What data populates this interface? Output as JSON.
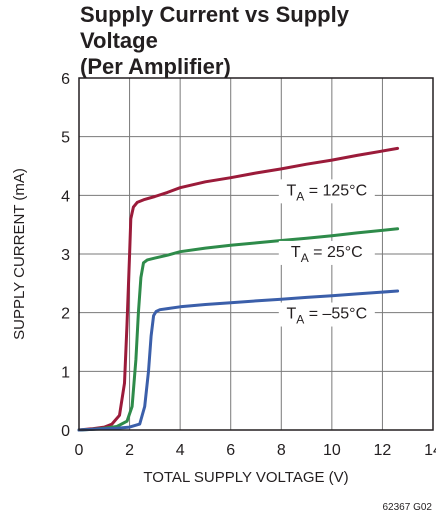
{
  "figure_id": "62367 G02",
  "chart_data": {
    "type": "line",
    "title": "Supply Current vs Supply Voltage",
    "subtitle": "(Per Amplifier)",
    "xlabel": "TOTAL SUPPLY VOLTAGE (V)",
    "ylabel": "SUPPLY CURRENT (mA)",
    "xlim": [
      0,
      14
    ],
    "ylim": [
      0,
      6
    ],
    "xticks": [
      0,
      2,
      4,
      6,
      8,
      10,
      12,
      14
    ],
    "yticks": [
      0,
      1,
      2,
      3,
      4,
      5,
      6
    ],
    "grid": true,
    "series": [
      {
        "name": "TA = 125°C",
        "label_main": "T",
        "label_sub": "A",
        "label_rest": " = 125°C",
        "color": "#9b1b3a",
        "label_x": 9.8,
        "label_y": 4.0,
        "x": [
          0,
          0.5,
          1.0,
          1.3,
          1.6,
          1.8,
          1.9,
          2.0,
          2.05,
          2.15,
          2.3,
          2.6,
          3.0,
          3.5,
          4.0,
          5.0,
          6.0,
          7.0,
          8.0,
          9.0,
          10.0,
          11.0,
          12.6
        ],
        "values": [
          0,
          0.02,
          0.05,
          0.1,
          0.25,
          0.8,
          1.8,
          3.0,
          3.6,
          3.8,
          3.88,
          3.93,
          3.98,
          4.05,
          4.13,
          4.23,
          4.3,
          4.38,
          4.45,
          4.53,
          4.6,
          4.68,
          4.8
        ]
      },
      {
        "name": "TA = 25°C",
        "label_main": "T",
        "label_sub": "A",
        "label_rest": " = 25°C",
        "color": "#2e8b4a",
        "label_x": 9.8,
        "label_y": 2.95,
        "x": [
          0,
          0.5,
          1.0,
          1.5,
          1.9,
          2.1,
          2.25,
          2.35,
          2.45,
          2.55,
          2.7,
          3.0,
          3.5,
          4.0,
          5.0,
          6.0,
          7.0,
          8.0,
          9.0,
          10.0,
          11.0,
          12.6
        ],
        "values": [
          0,
          0.01,
          0.03,
          0.06,
          0.15,
          0.4,
          1.2,
          2.0,
          2.6,
          2.85,
          2.9,
          2.93,
          2.98,
          3.04,
          3.1,
          3.15,
          3.19,
          3.23,
          3.27,
          3.31,
          3.36,
          3.43
        ]
      },
      {
        "name": "TA = –55°C",
        "label_main": "T",
        "label_sub": "A",
        "label_rest": " = –55°C",
        "color": "#3b5faa",
        "label_x": 9.8,
        "label_y": 1.9,
        "x": [
          0,
          0.5,
          1.0,
          1.5,
          2.0,
          2.4,
          2.6,
          2.75,
          2.85,
          2.95,
          3.05,
          3.2,
          3.5,
          4.0,
          5.0,
          6.0,
          7.0,
          8.0,
          9.0,
          10.0,
          11.0,
          12.6
        ],
        "values": [
          0,
          0.01,
          0.02,
          0.03,
          0.05,
          0.1,
          0.4,
          1.0,
          1.6,
          1.95,
          2.02,
          2.05,
          2.07,
          2.1,
          2.14,
          2.17,
          2.2,
          2.23,
          2.26,
          2.29,
          2.32,
          2.37
        ]
      }
    ]
  }
}
